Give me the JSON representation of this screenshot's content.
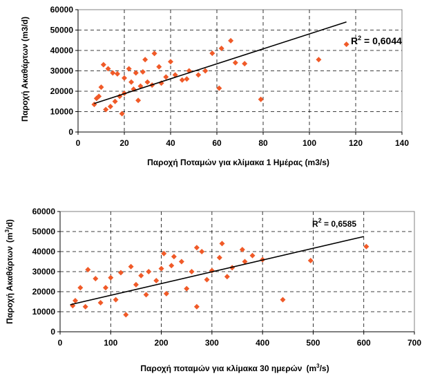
{
  "chart_data": [
    {
      "type": "scatter",
      "xlabel": "Παροχή Ποταμών για κλίμακα 1 Ημέρας (m3/s)",
      "ylabel": "Παροχή Ακαθάρτων (m3/d)",
      "xlim": [
        0,
        140
      ],
      "ylim": [
        0,
        60000
      ],
      "xticks": [
        "0",
        "20",
        "40",
        "60",
        "80",
        "100",
        "120",
        "140"
      ],
      "yticks": [
        "0",
        "10000",
        "20000",
        "30000",
        "40000",
        "50000",
        "60000"
      ],
      "grid": "dashed",
      "annotation": {
        "base": "R",
        "sup": "2",
        "rest": " = 0,6044"
      },
      "trendline": {
        "x": [
          7,
          116
        ],
        "y": [
          14000,
          54000
        ]
      },
      "marker_color": "#f05a28",
      "points": [
        [
          116,
          43000
        ],
        [
          104,
          35500
        ],
        [
          79,
          16000
        ],
        [
          66,
          44800
        ],
        [
          62,
          41000
        ],
        [
          58,
          38600
        ],
        [
          52,
          28000
        ],
        [
          48,
          30000
        ],
        [
          45,
          25500
        ],
        [
          40,
          34500
        ],
        [
          38,
          27000
        ],
        [
          35,
          32000
        ],
        [
          33,
          38500
        ],
        [
          30,
          24500
        ],
        [
          29,
          35500
        ],
        [
          28,
          29500
        ],
        [
          25,
          29000
        ],
        [
          23,
          24500
        ],
        [
          22,
          31000
        ],
        [
          20,
          26500
        ],
        [
          17,
          28500
        ],
        [
          15,
          29000
        ],
        [
          13,
          31000
        ],
        [
          11,
          33000
        ],
        [
          10,
          22000
        ],
        [
          9,
          17500
        ],
        [
          8,
          16500
        ],
        [
          7,
          13500
        ],
        [
          12,
          11000
        ],
        [
          14,
          12500
        ],
        [
          16,
          15000
        ],
        [
          18,
          17500
        ],
        [
          20,
          19000
        ],
        [
          24,
          21000
        ],
        [
          27,
          22500
        ],
        [
          32,
          23000
        ],
        [
          36,
          24000
        ],
        [
          42,
          28000
        ],
        [
          47,
          26000
        ],
        [
          55,
          30000
        ],
        [
          68,
          34000
        ],
        [
          72,
          33500
        ],
        [
          61,
          21500
        ],
        [
          19,
          9000
        ],
        [
          26,
          15500
        ]
      ]
    },
    {
      "type": "scatter",
      "xlabel": "Παροχή ποταμών για κλίμακα 30 ημερών",
      "xlabel_unit": {
        "base": "(m",
        "sup": "3",
        "rest": "/s)"
      },
      "ylabel": "Παροχή Ακαθάρτων",
      "ylabel_unit": {
        "base": "(m",
        "sup": "3",
        "rest": "/d)"
      },
      "xlim": [
        0,
        700
      ],
      "ylim": [
        0,
        60000
      ],
      "xticks": [
        "0",
        "100",
        "200",
        "300",
        "400",
        "500",
        "600",
        "700"
      ],
      "yticks": [
        "0",
        "10000",
        "20000",
        "30000",
        "40000",
        "50000",
        "60000"
      ],
      "grid": "dashed",
      "annotation": {
        "base": "R",
        "sup": "2",
        "rest": " = 0,6585"
      },
      "trendline": {
        "x": [
          20,
          600
        ],
        "y": [
          13500,
          47500
        ]
      },
      "marker_color": "#f05a28",
      "points": [
        [
          605,
          42500
        ],
        [
          495,
          35500
        ],
        [
          440,
          16000
        ],
        [
          400,
          36000
        ],
        [
          380,
          38000
        ],
        [
          365,
          35000
        ],
        [
          340,
          32000
        ],
        [
          320,
          44000
        ],
        [
          315,
          37000
        ],
        [
          300,
          30500
        ],
        [
          280,
          40000
        ],
        [
          270,
          42000
        ],
        [
          260,
          30000
        ],
        [
          240,
          35000
        ],
        [
          220,
          33000
        ],
        [
          200,
          31500
        ],
        [
          190,
          25500
        ],
        [
          175,
          30000
        ],
        [
          160,
          28000
        ],
        [
          150,
          23500
        ],
        [
          140,
          32500
        ],
        [
          120,
          29500
        ],
        [
          100,
          27000
        ],
        [
          90,
          22000
        ],
        [
          70,
          26500
        ],
        [
          55,
          31000
        ],
        [
          40,
          22000
        ],
        [
          30,
          15500
        ],
        [
          25,
          13000
        ],
        [
          50,
          12500
        ],
        [
          80,
          14500
        ],
        [
          110,
          16000
        ],
        [
          130,
          8500
        ],
        [
          170,
          18500
        ],
        [
          210,
          19000
        ],
        [
          250,
          21500
        ],
        [
          290,
          26000
        ],
        [
          330,
          27500
        ],
        [
          270,
          12500
        ],
        [
          360,
          41000
        ],
        [
          225,
          37500
        ],
        [
          205,
          39000
        ]
      ]
    }
  ]
}
